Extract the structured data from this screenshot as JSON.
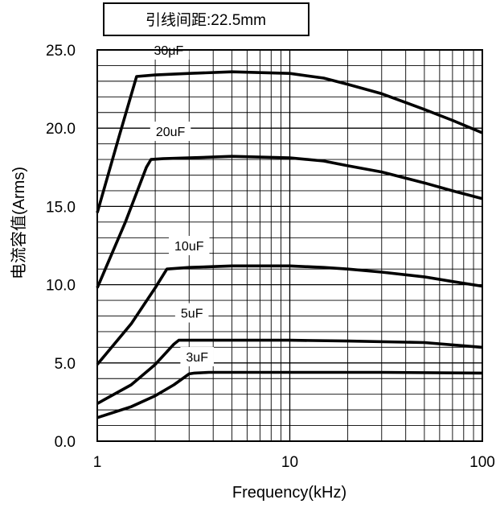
{
  "chart_data": {
    "type": "line",
    "title": "引线间距:22.5mm",
    "xlabel": "Frequency(kHz)",
    "ylabel": "电流容值(Arms)",
    "xscale": "log",
    "xlim": [
      1,
      100
    ],
    "ylim": [
      0,
      25.0
    ],
    "xticks": [
      {
        "value": 1,
        "label": "1"
      },
      {
        "value": 10,
        "label": "10"
      },
      {
        "value": 100,
        "label": "100"
      }
    ],
    "yticks": [
      {
        "value": 0,
        "label": "0.0"
      },
      {
        "value": 5,
        "label": "5.0"
      },
      {
        "value": 10,
        "label": "10.0"
      },
      {
        "value": 15,
        "label": "15.0"
      },
      {
        "value": 20,
        "label": "20.0"
      },
      {
        "value": 25,
        "label": "25.0"
      }
    ],
    "grid": true,
    "series": [
      {
        "name": "30μF",
        "label_at": [
          2.35,
          25.0
        ],
        "points": [
          [
            1,
            14.6
          ],
          [
            1.3,
            19.5
          ],
          [
            1.6,
            23.3
          ],
          [
            2,
            23.4
          ],
          [
            3,
            23.5
          ],
          [
            5,
            23.6
          ],
          [
            10,
            23.5
          ],
          [
            15,
            23.2
          ],
          [
            20,
            22.8
          ],
          [
            30,
            22.2
          ],
          [
            50,
            21.2
          ],
          [
            70,
            20.5
          ],
          [
            100,
            19.7
          ]
        ]
      },
      {
        "name": "20uF",
        "label_at": [
          2.4,
          19.8
        ],
        "points": [
          [
            1,
            9.8
          ],
          [
            1.4,
            14.0
          ],
          [
            1.8,
            17.5
          ],
          [
            1.9,
            18.0
          ],
          [
            2.2,
            18.05
          ],
          [
            3,
            18.1
          ],
          [
            5,
            18.2
          ],
          [
            10,
            18.1
          ],
          [
            15,
            17.9
          ],
          [
            20,
            17.6
          ],
          [
            30,
            17.2
          ],
          [
            50,
            16.5
          ],
          [
            70,
            16.0
          ],
          [
            100,
            15.5
          ]
        ]
      },
      {
        "name": "10uF",
        "label_at": [
          3.0,
          12.5
        ],
        "points": [
          [
            1,
            4.9
          ],
          [
            1.5,
            7.5
          ],
          [
            2,
            9.8
          ],
          [
            2.3,
            11.0
          ],
          [
            3,
            11.1
          ],
          [
            5,
            11.2
          ],
          [
            10,
            11.2
          ],
          [
            15,
            11.1
          ],
          [
            20,
            11.0
          ],
          [
            30,
            10.8
          ],
          [
            50,
            10.5
          ],
          [
            70,
            10.2
          ],
          [
            100,
            9.9
          ]
        ]
      },
      {
        "name": "5uF",
        "label_at": [
          3.1,
          8.2
        ],
        "points": [
          [
            1,
            2.4
          ],
          [
            1.5,
            3.6
          ],
          [
            2,
            4.9
          ],
          [
            2.5,
            6.2
          ],
          [
            2.65,
            6.45
          ],
          [
            5,
            6.45
          ],
          [
            10,
            6.45
          ],
          [
            20,
            6.4
          ],
          [
            50,
            6.3
          ],
          [
            100,
            6.0
          ]
        ]
      },
      {
        "name": "3uF",
        "label_at": [
          3.3,
          5.4
        ],
        "points": [
          [
            1,
            1.5
          ],
          [
            1.5,
            2.2
          ],
          [
            2,
            2.9
          ],
          [
            2.5,
            3.6
          ],
          [
            3,
            4.3
          ],
          [
            3.2,
            4.35
          ],
          [
            3.8,
            4.4
          ],
          [
            10,
            4.4
          ],
          [
            30,
            4.4
          ],
          [
            100,
            4.35
          ]
        ]
      }
    ]
  }
}
